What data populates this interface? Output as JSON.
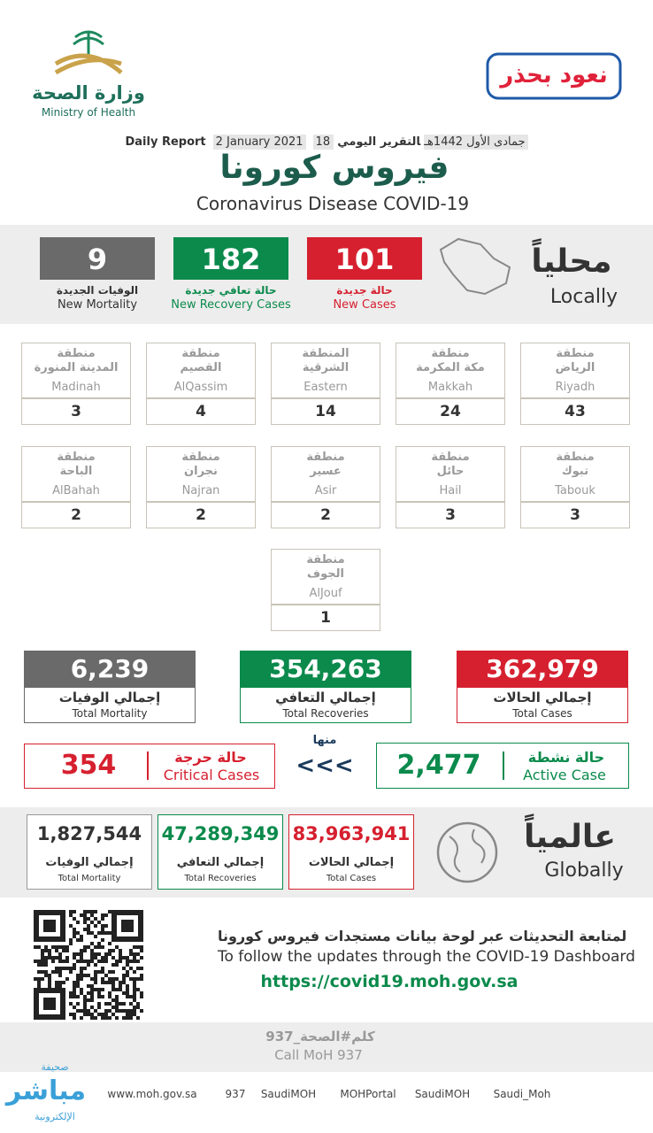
{
  "header": {
    "ministry_ar": "وزارة الصحة",
    "ministry_en": "Ministry of Health",
    "campaign": "نعود بحذر"
  },
  "report": {
    "label_ar": "التقرير اليومي",
    "date_hijri": "18 جمادى الأول 1442هـ",
    "date": "2 January 2021",
    "label_en": "Daily Report",
    "title_ar": "فيروس كورونا",
    "title_en": "Coronavirus Disease COVID-19"
  },
  "locally": {
    "title_ar": "محلياً",
    "title_en": "Locally",
    "stats": [
      {
        "value": "101",
        "label_ar": "حالة جديدة",
        "label_en": "New Cases"
      },
      {
        "value": "182",
        "label_ar": "حالة تعافي جديدة",
        "label_en": "New Recovery Cases"
      },
      {
        "value": "9",
        "label_ar": "الوفيات الجديدة",
        "label_en": "New Mortality"
      }
    ]
  },
  "regions": [
    {
      "prefix": "منطقة",
      "name_ar": "الرياض",
      "name_en": "Riyadh",
      "value": "43"
    },
    {
      "prefix": "منطقة",
      "name_ar": "مكة المكرمة",
      "name_en": "Makkah",
      "value": "24"
    },
    {
      "prefix": "المنطقة",
      "name_ar": "الشرقية",
      "name_en": "Eastern",
      "value": "14"
    },
    {
      "prefix": "منطقة",
      "name_ar": "القصيم",
      "name_en": "AlQassim",
      "value": "4"
    },
    {
      "prefix": "منطقة",
      "name_ar": "المدينة المنورة",
      "name_en": "Madinah",
      "value": "3"
    },
    {
      "prefix": "منطقة",
      "name_ar": "تبوك",
      "name_en": "Tabouk",
      "value": "3"
    },
    {
      "prefix": "منطقة",
      "name_ar": "حائل",
      "name_en": "Hail",
      "value": "3"
    },
    {
      "prefix": "منطقة",
      "name_ar": "عسير",
      "name_en": "Asir",
      "value": "2"
    },
    {
      "prefix": "منطقة",
      "name_ar": "نجران",
      "name_en": "Najran",
      "value": "2"
    },
    {
      "prefix": "منطقة",
      "name_ar": "الباحة",
      "name_en": "AlBahah",
      "value": "2"
    },
    {
      "prefix": "منطقة",
      "name_ar": "الجوف",
      "name_en": "AlJouf",
      "value": "1"
    }
  ],
  "totals": [
    {
      "value": "362,979",
      "label_ar": "إجمالي الحالات",
      "label_en": "Total Cases"
    },
    {
      "value": "354,263",
      "label_ar": "إجمالي التعافي",
      "label_en": "Total Recoveries"
    },
    {
      "value": "6,239",
      "label_ar": "إجمالي الوفيات",
      "label_en": "Total Mortality"
    }
  ],
  "status": {
    "active": {
      "label_ar": "حالة نشطة",
      "label_en": "Active Case",
      "value": "2,477"
    },
    "of_which": "منها",
    "arrows": "<<<",
    "critical": {
      "label_ar": "حالة حرجة",
      "label_en": "Critical Cases",
      "value": "354"
    }
  },
  "global": {
    "title_ar": "عالمياً",
    "title_en": "Globally",
    "stats": [
      {
        "value": "83,963,941",
        "label_ar": "إجمالي الحالات",
        "label_en": "Total Cases"
      },
      {
        "value": "47,289,349",
        "label_ar": "إجمالي التعافي",
        "label_en": "Total Recoveries"
      },
      {
        "value": "1,827,544",
        "label_ar": "إجمالي الوفيات",
        "label_en": "Total Mortality"
      }
    ]
  },
  "dashboard": {
    "text_ar": "لمتابعة التحديثات عبر لوحة بيانات مستجدات فيروس كورونا",
    "text_en": "To follow the updates through the COVID-19 Dashboard",
    "url": "https://covid19.moh.gov.sa"
  },
  "call": {
    "ar": "كلم#الصحة_937",
    "en": "Call MoH 937"
  },
  "footer": [
    "www.moh.gov.sa",
    "937",
    "SaudiMOH",
    "MOHPortal",
    "SaudiMOH",
    "Saudi_Moh"
  ],
  "watermark": {
    "top": "صحيفة",
    "main": "مباشر",
    "bottom": "الإلكترونية"
  }
}
